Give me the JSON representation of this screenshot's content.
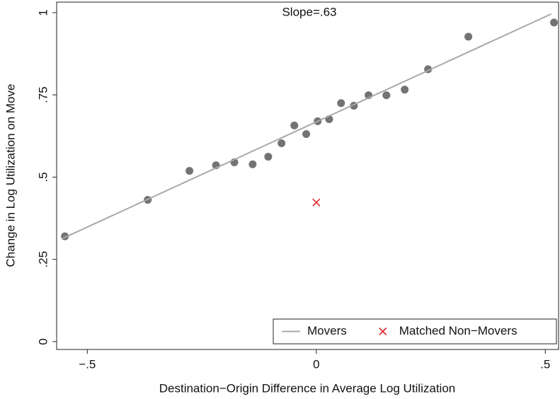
{
  "chart_data": {
    "type": "scatter",
    "annotation": "Slope=.63",
    "x_label": "Destination−Origin Difference in Average Log Utilization",
    "y_label": "Change in Log Utilization on Move",
    "xlim": [
      -0.567,
      0.529
    ],
    "ylim": [
      -0.024,
      1.032
    ],
    "xticks": [
      {
        "value": -0.5,
        "label": "−.5"
      },
      0,
      {
        "value": 0.5,
        "label": ".5"
      }
    ],
    "yticks": [
      0,
      {
        "value": 0.25,
        "label": ".25"
      },
      {
        "value": 0.5,
        "label": ".5"
      },
      {
        "value": 0.75,
        "label": ".75"
      },
      1
    ],
    "legend": "lower right",
    "series": [
      {
        "marker": "circle",
        "color": "#737373",
        "x": [
          -0.549,
          -0.368,
          -0.277,
          -0.219,
          -0.179,
          -0.139,
          -0.105,
          -0.076,
          -0.048,
          -0.022,
          0.003,
          0.028,
          0.054,
          0.082,
          0.114,
          0.153,
          0.193,
          0.244,
          0.332,
          0.519
        ],
        "values": [
          0.32,
          0.431,
          0.519,
          0.536,
          0.545,
          0.539,
          0.562,
          0.603,
          0.657,
          0.631,
          0.67,
          0.676,
          0.725,
          0.717,
          0.749,
          0.749,
          0.766,
          0.828,
          0.927,
          0.97
        ]
      },
      {
        "name": "Movers",
        "marker": "line",
        "color": "#a8a8a8",
        "x": [
          -0.555,
          0.513
        ],
        "values": [
          0.313,
          0.996
        ]
      },
      {
        "name": "Matched Non−Movers",
        "marker": "x",
        "color": "#e3262b",
        "x": [
          0
        ],
        "values": [
          0.423
        ]
      }
    ]
  }
}
